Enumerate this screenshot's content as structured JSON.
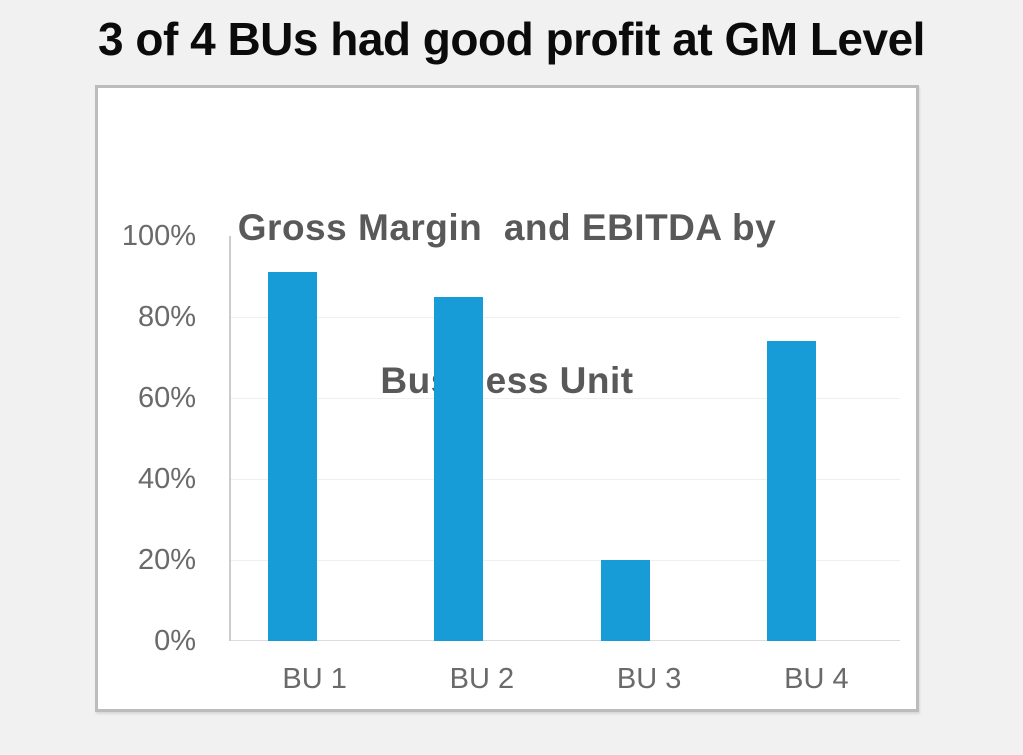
{
  "slide": {
    "title": "3 of 4 BUs had good profit at GM Level"
  },
  "chart": {
    "title_line1": "Gross Margin  and EBITDA by",
    "title_line2": "Business Unit"
  },
  "chart_data": {
    "type": "bar",
    "title": "Gross Margin  and EBITDA by Business Unit",
    "categories": [
      "BU 1",
      "BU 2",
      "BU 3",
      "BU 4"
    ],
    "values": [
      91,
      85,
      20,
      74
    ],
    "value_unit": "%",
    "xlabel": "",
    "ylabel": "",
    "ylim": [
      0,
      100
    ],
    "ytick_values": [
      0,
      20,
      40,
      60,
      80,
      100
    ],
    "ytick_labels": [
      "0%",
      "20%",
      "40%",
      "60%",
      "80%",
      "100%"
    ],
    "grid": "faint horizontal gridlines",
    "legend": "none",
    "bar_color": "#189cd8"
  },
  "colors": {
    "page_background": "#f1f1f1",
    "panel_background": "#ffffff",
    "panel_border": "#bcbcbc",
    "chart_title_text": "#595959",
    "axis_label_text": "#6a6a6a",
    "bar_fill": "#189cd8",
    "gridline": "#efefef",
    "axis_line": "#cccccc",
    "slide_title_text": "#0b0b0b"
  }
}
